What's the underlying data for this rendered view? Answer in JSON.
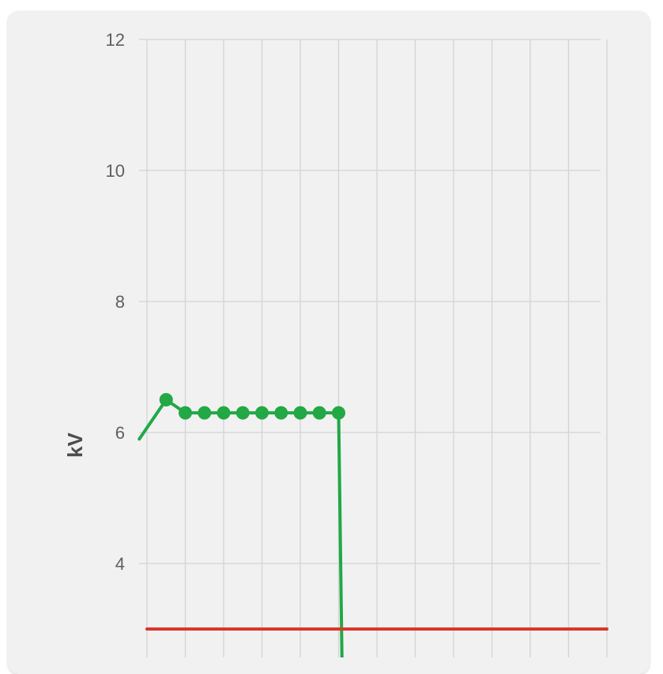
{
  "chart_data": {
    "type": "line",
    "ylabel": "kV",
    "xlabel": "",
    "title": "",
    "ylim": [
      2.6,
      12
    ],
    "xlim": [
      0,
      12
    ],
    "yticks": [
      12,
      10,
      8,
      6,
      4
    ],
    "grid": true,
    "legend": "none",
    "series": [
      {
        "color": "#22a845",
        "markers": true,
        "points": [
          {
            "x": -0.2,
            "y": 5.9,
            "marker": false
          },
          {
            "x": 0.5,
            "y": 6.5,
            "marker": true
          },
          {
            "x": 1.0,
            "y": 6.3,
            "marker": true
          },
          {
            "x": 1.5,
            "y": 6.3,
            "marker": true
          },
          {
            "x": 2.0,
            "y": 6.3,
            "marker": true
          },
          {
            "x": 2.5,
            "y": 6.3,
            "marker": true
          },
          {
            "x": 3.0,
            "y": 6.3,
            "marker": true
          },
          {
            "x": 3.5,
            "y": 6.3,
            "marker": true
          },
          {
            "x": 4.0,
            "y": 6.3,
            "marker": true
          },
          {
            "x": 4.5,
            "y": 6.3,
            "marker": true
          },
          {
            "x": 5.0,
            "y": 6.3,
            "marker": true
          },
          {
            "x": 5.0,
            "y": 6.3,
            "marker": false
          },
          {
            "x": 5.1,
            "y": 2.0,
            "marker": false
          }
        ]
      },
      {
        "color": "#d9372b",
        "markers": false,
        "points": [
          {
            "x": 0.0,
            "y": 3.0,
            "marker": false
          },
          {
            "x": 12.0,
            "y": 3.0,
            "marker": false
          }
        ]
      }
    ]
  }
}
